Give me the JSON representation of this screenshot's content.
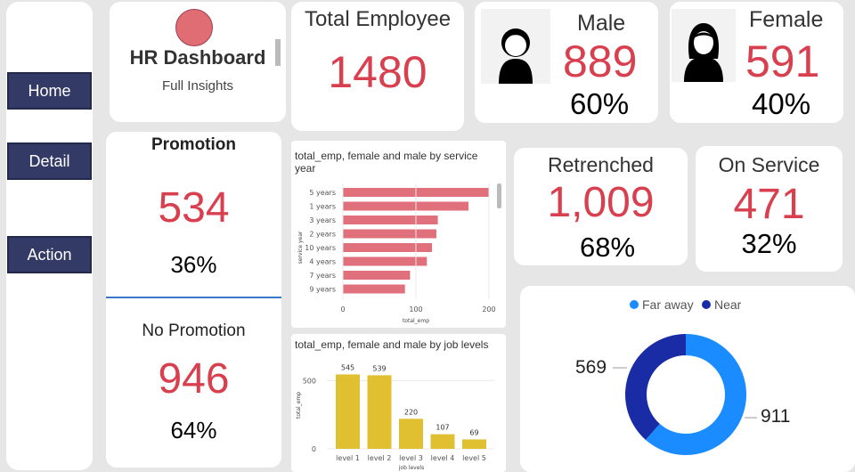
{
  "nav": {
    "items": [
      "Home",
      "Detail",
      "Action"
    ]
  },
  "header": {
    "title": "HR Dashboard",
    "subtitle": "Full Insights"
  },
  "kpis": {
    "total": {
      "label": "Total Employee",
      "value": "1480"
    },
    "male": {
      "label": "Male",
      "value": "889",
      "pct": "60%"
    },
    "female": {
      "label": "Female",
      "value": "591",
      "pct": "40%"
    },
    "promotion": {
      "label": "Promotion",
      "value": "534",
      "pct": "36%"
    },
    "no_promotion": {
      "label": "No Promotion",
      "value": "946",
      "pct": "64%"
    },
    "retrenched": {
      "label": "Retrenched",
      "value": "1,009",
      "pct": "68%"
    },
    "on_service": {
      "label": "On Service",
      "value": "471",
      "pct": "32%"
    }
  },
  "colors": {
    "nav": "#343a66",
    "accent_red": "#d9404f",
    "bar_pink": "#e0707c",
    "bar_yellow": "#e0c030",
    "donut_far": "#1a8cff",
    "donut_near": "#1a2ba6"
  },
  "chart_data": [
    {
      "type": "bar",
      "orientation": "horizontal",
      "title": "total_emp, female and male by service year",
      "xlabel": "total_emp",
      "ylabel": "service year",
      "categories": [
        "5 years",
        "1 years",
        "3 years",
        "2 years",
        "10 years",
        "4 years",
        "7 years",
        "9 years"
      ],
      "values": [
        200,
        172,
        130,
        128,
        122,
        115,
        92,
        85
      ],
      "xlim": [
        0,
        200
      ],
      "xticks": [
        "0",
        "100",
        "200"
      ]
    },
    {
      "type": "bar",
      "title": "total_emp, female and male by job levels",
      "xlabel": "job levels",
      "ylabel": "total_emp",
      "categories": [
        "level 1",
        "level 2",
        "level 3",
        "level 4",
        "level 5"
      ],
      "values": [
        545,
        539,
        220,
        107,
        69
      ],
      "data_labels": [
        "545",
        "539",
        "220",
        "107",
        "69"
      ],
      "ylim": [
        0,
        600
      ],
      "yticks": [
        "0",
        "500"
      ]
    },
    {
      "type": "pie",
      "style": "donut",
      "legend": [
        "Far away",
        "Near"
      ],
      "labels": [
        "911",
        "569"
      ],
      "values": [
        911,
        569
      ],
      "legend_position": "top"
    }
  ]
}
